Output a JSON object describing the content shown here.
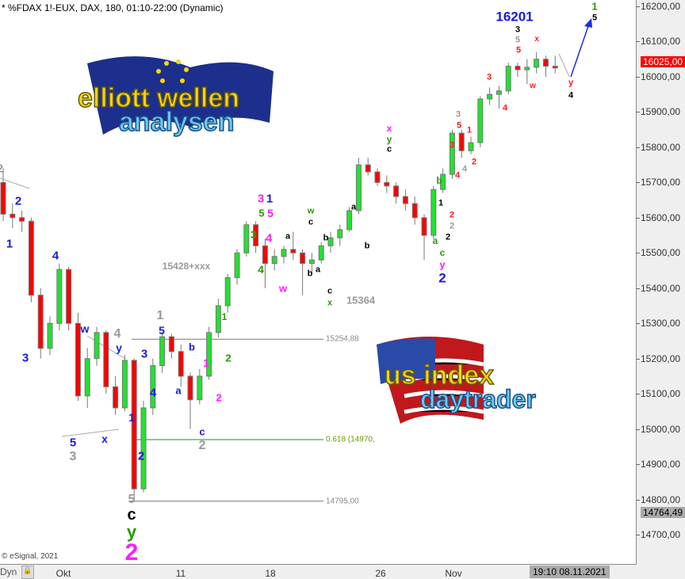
{
  "header": {
    "title": "* %FDAX 1!-EUX, DAX, 180, 01:10-22:00 (Dynamic)"
  },
  "logos": {
    "top_left": "elliott wellen analysen",
    "bottom_right": "us index daytrader"
  },
  "footer": {
    "copyright": "© eSignal, 2021",
    "dyn_label": "Dyn",
    "cursor_time": "19:10 08.11.2021"
  },
  "colors": {
    "up": "#22e22e",
    "down": "#ff0000",
    "wick": "#777777",
    "fib": "#00a000",
    "last_price": "#ff0000"
  },
  "chart_data": {
    "type": "candlestick",
    "title": "",
    "ylim": [
      14650,
      16230
    ],
    "y_ticks": [
      "16200,00",
      "16100,00",
      "16000,00",
      "15900,00",
      "15800,00",
      "15700,00",
      "15600,00",
      "15500,00",
      "15400,00",
      "15300,00",
      "15200,00",
      "15100,00",
      "15000,00",
      "14900,00",
      "14800,00",
      "14700,00"
    ],
    "y_tick_values": [
      16200,
      16100,
      16000,
      15900,
      15800,
      15700,
      15600,
      15500,
      15400,
      15300,
      15200,
      15100,
      15000,
      14900,
      14800,
      14700
    ],
    "x_ticks": [
      "Okt",
      "11",
      "18",
      "26",
      "Nov"
    ],
    "last_price": {
      "value": 16025.0,
      "label": "16025,00"
    },
    "marker_price": {
      "value": 14764.49,
      "label": "14764,49"
    },
    "levels": [
      {
        "value": 15254.88,
        "label": "15254,88"
      },
      {
        "value": 14970,
        "label": "0.618 (14970,"
      },
      {
        "value": 14795.0,
        "label": "14795,00"
      }
    ],
    "candles": [
      [
        15700,
        15740,
        15590,
        15610
      ],
      [
        15610,
        15640,
        15570,
        15600
      ],
      [
        15600,
        15620,
        15560,
        15590
      ],
      [
        15590,
        15600,
        15360,
        15380
      ],
      [
        15380,
        15400,
        15200,
        15229
      ],
      [
        15229,
        15320,
        15210,
        15300
      ],
      [
        15300,
        15470,
        15280,
        15453
      ],
      [
        15453,
        15460,
        15280,
        15300
      ],
      [
        15300,
        15330,
        15080,
        15094
      ],
      [
        15094,
        15230,
        15060,
        15200
      ],
      [
        15200,
        15290,
        15180,
        15274
      ],
      [
        15274,
        15280,
        15100,
        15120
      ],
      [
        15120,
        15150,
        15040,
        15060
      ],
      [
        15060,
        15210,
        15050,
        15195
      ],
      [
        15195,
        15200,
        14800,
        14830
      ],
      [
        14830,
        15080,
        14820,
        15060
      ],
      [
        15060,
        15200,
        15040,
        15180
      ],
      [
        15180,
        15275,
        15160,
        15262
      ],
      [
        15262,
        15270,
        15200,
        15220
      ],
      [
        15220,
        15240,
        15120,
        15150
      ],
      [
        15150,
        15160,
        15000,
        15083
      ],
      [
        15083,
        15170,
        15070,
        15150
      ],
      [
        15150,
        15290,
        15140,
        15274
      ],
      [
        15274,
        15370,
        15260,
        15350
      ],
      [
        15350,
        15440,
        15330,
        15430
      ],
      [
        15430,
        15510,
        15410,
        15500
      ],
      [
        15500,
        15590,
        15490,
        15580
      ],
      [
        15580,
        15590,
        15500,
        15520
      ],
      [
        15520,
        15540,
        15400,
        15470
      ],
      [
        15470,
        15510,
        15450,
        15490
      ],
      [
        15490,
        15520,
        15470,
        15510
      ],
      [
        15510,
        15560,
        15480,
        15500
      ],
      [
        15500,
        15510,
        15380,
        15470
      ],
      [
        15470,
        15500,
        15440,
        15480
      ],
      [
        15480,
        15530,
        15470,
        15520
      ],
      [
        15520,
        15560,
        15500,
        15543
      ],
      [
        15543,
        15580,
        15520,
        15566
      ],
      [
        15566,
        15630,
        15560,
        15620
      ],
      [
        15620,
        15770,
        15610,
        15750
      ],
      [
        15750,
        15770,
        15720,
        15730
      ],
      [
        15730,
        15740,
        15690,
        15700
      ],
      [
        15700,
        15720,
        15670,
        15690
      ],
      [
        15690,
        15700,
        15640,
        15660
      ],
      [
        15660,
        15680,
        15620,
        15640
      ],
      [
        15640,
        15660,
        15580,
        15600
      ],
      [
        15600,
        15610,
        15480,
        15550
      ],
      [
        15550,
        15690,
        15540,
        15680
      ],
      [
        15680,
        15740,
        15670,
        15723
      ],
      [
        15723,
        15850,
        15710,
        15840
      ],
      [
        15840,
        15850,
        15770,
        15790
      ],
      [
        15790,
        15830,
        15780,
        15813
      ],
      [
        15813,
        15945,
        15800,
        15937
      ],
      [
        15937,
        15970,
        15920,
        15950
      ],
      [
        15950,
        15975,
        15910,
        15960
      ],
      [
        15960,
        16040,
        15950,
        16030
      ],
      [
        16030,
        16040,
        16000,
        16020
      ],
      [
        16020,
        16050,
        15980,
        16027
      ],
      [
        16027,
        16070,
        16010,
        16050
      ],
      [
        16050,
        16060,
        16000,
        16030
      ],
      [
        16030,
        16060,
        16010,
        16025
      ]
    ],
    "wave_labels": [
      "2",
      "2",
      "1",
      "3",
      "4",
      "w",
      "4",
      "y",
      "5",
      "3",
      "x",
      "1",
      "2",
      "5",
      "c",
      "y",
      "2",
      "1",
      "5",
      "3",
      "4",
      "a",
      "b",
      "c",
      "2",
      "1",
      "2",
      "1",
      "2",
      "3",
      "1",
      "5",
      "5",
      "3",
      "4",
      "4",
      "w",
      "a",
      "b",
      "a",
      "w",
      "c",
      "b",
      "c",
      "x",
      "15364",
      "a",
      "b",
      "15428+xxx",
      "x",
      "y",
      "c",
      "b",
      "1",
      "a",
      "2",
      "2",
      "2",
      "c",
      "y",
      "2",
      "3",
      "5",
      "1",
      "3",
      "2",
      "4",
      "4",
      "3",
      "4",
      "3",
      "5",
      "5",
      "x",
      "w",
      "y",
      "4",
      "16201",
      "1",
      "5"
    ]
  }
}
